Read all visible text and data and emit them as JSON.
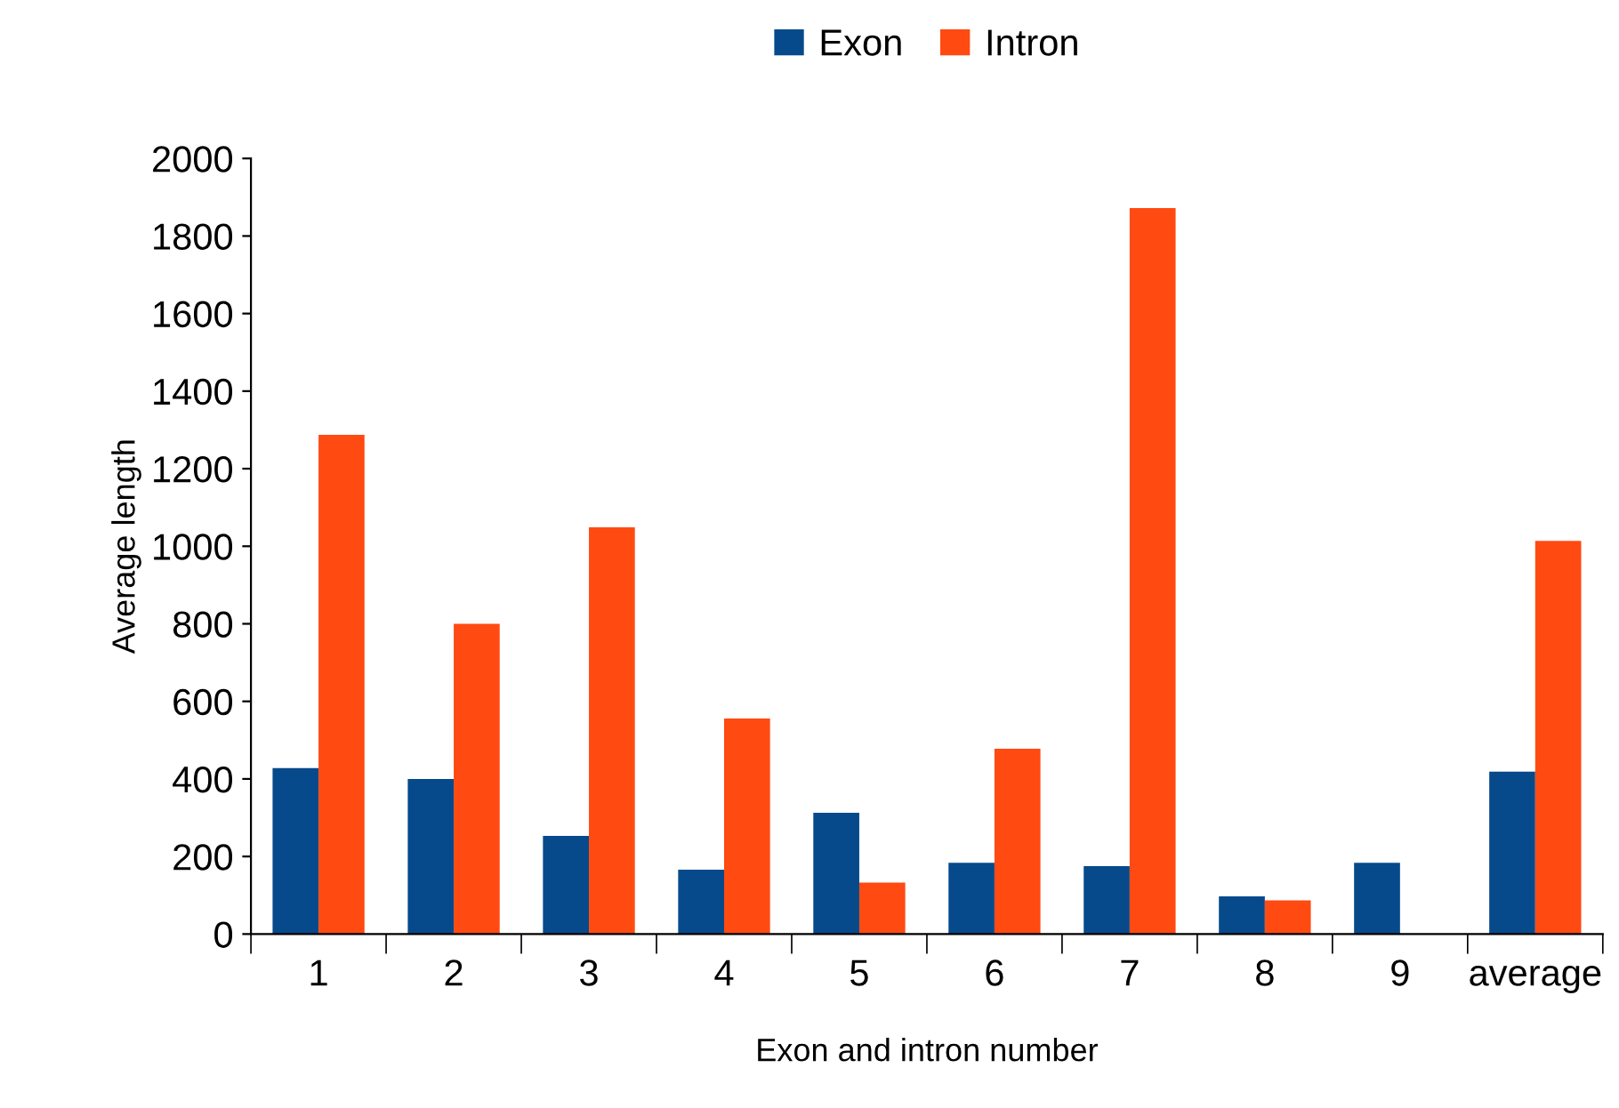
{
  "chart_data": {
    "type": "bar",
    "xlabel": "Exon and intron number",
    "ylabel": "Average length",
    "categories": [
      "1",
      "2",
      "3",
      "4",
      "5",
      "6",
      "7",
      "8",
      "9",
      "average"
    ],
    "series": [
      {
        "name": "Exon",
        "color": "#064a8c",
        "values": [
          428,
          400,
          253,
          166,
          313,
          184,
          175,
          97,
          184,
          419
        ]
      },
      {
        "name": "Intron",
        "color": "#ff4a12",
        "values": [
          1287,
          800,
          1049,
          556,
          133,
          478,
          1872,
          87,
          null,
          1014
        ]
      }
    ],
    "ylim": [
      0,
      2000
    ],
    "yticks": [
      0,
      200,
      400,
      600,
      800,
      1000,
      1200,
      1400,
      1600,
      1800,
      2000
    ],
    "grid": false,
    "legend": "top"
  }
}
